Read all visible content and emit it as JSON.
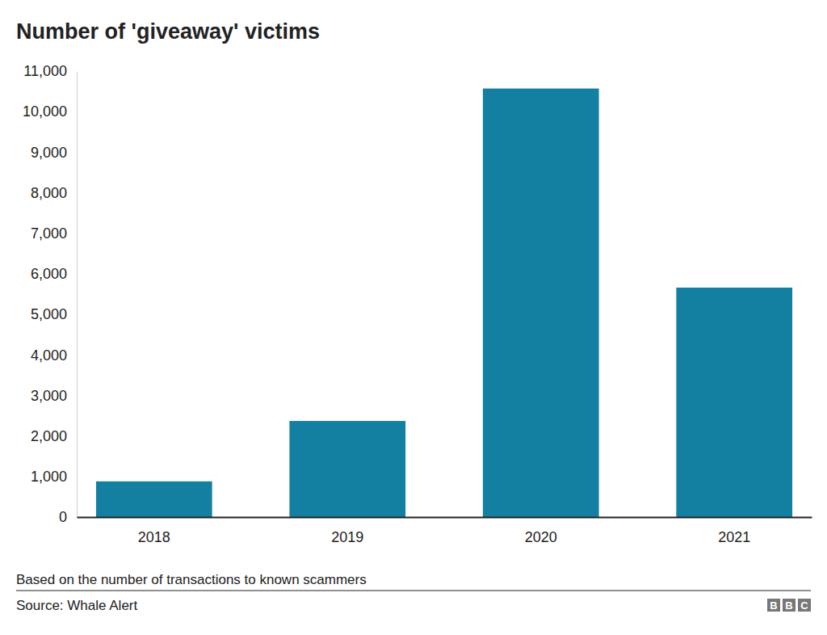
{
  "chart_data": {
    "type": "bar",
    "title": "Number of 'giveaway' victims",
    "caption": "Based on the number of transactions to known scammers",
    "source": "Source: Whale Alert",
    "logo": "BBC",
    "categories": [
      "2018",
      "2019",
      "2020",
      "2021"
    ],
    "values": [
      880,
      2370,
      10570,
      5660
    ],
    "color": "#1380a1",
    "ylim": [
      0,
      11000
    ],
    "yticks": [
      0,
      {
        "value": 1000,
        "label": "1,000"
      },
      {
        "value": 2000,
        "label": "2,000"
      },
      {
        "value": 3000,
        "label": "3,000"
      },
      {
        "value": 4000,
        "label": "4,000"
      },
      {
        "value": 5000,
        "label": "5,000"
      },
      {
        "value": 6000,
        "label": "6,000"
      },
      {
        "value": 7000,
        "label": "7,000"
      },
      {
        "value": 8000,
        "label": "8,000"
      },
      {
        "value": 9000,
        "label": "9,000"
      },
      {
        "value": 10000,
        "label": "10,000"
      },
      {
        "value": 11000,
        "label": "11,000"
      }
    ],
    "grid": false
  }
}
